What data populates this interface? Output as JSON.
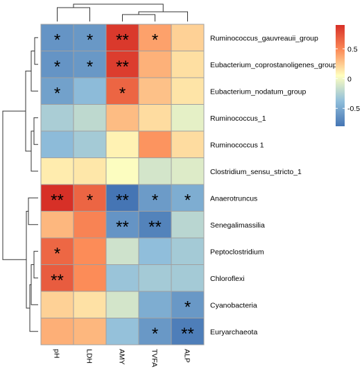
{
  "chart_data": {
    "type": "heatmap",
    "title": "",
    "columns": [
      "pH",
      "LDH",
      "AMY",
      "TVFA",
      "ALP"
    ],
    "rows": [
      "Ruminococcus_gauvreauii_group",
      "Eubacterium_coprostanoligenes_group",
      "Eubacterium_nodatum_group",
      "Ruminococcus_1",
      "Ruminococcus 1",
      "Clostridium_sensu_stricto_1",
      "Anaerotruncus",
      "Senegalimassilia",
      "Peptoclostridium",
      "Chloroflexi",
      "Cyanobacteria",
      "Euryarchaeota"
    ],
    "values": [
      [
        -0.62,
        -0.6,
        0.86,
        0.4,
        0.22
      ],
      [
        -0.62,
        -0.6,
        0.84,
        0.34,
        0.17
      ],
      [
        -0.55,
        -0.4,
        0.66,
        0.28,
        0.15
      ],
      [
        -0.28,
        -0.2,
        0.3,
        0.18,
        -0.05
      ],
      [
        -0.4,
        -0.3,
        0.1,
        0.45,
        0.18
      ],
      [
        0.12,
        0.14,
        0.04,
        -0.12,
        -0.08
      ],
      [
        0.9,
        0.66,
        -0.8,
        -0.58,
        -0.48
      ],
      [
        0.32,
        0.52,
        -0.62,
        -0.72,
        -0.22
      ],
      [
        0.65,
        0.48,
        -0.14,
        -0.38,
        -0.3
      ],
      [
        0.7,
        0.48,
        -0.34,
        -0.3,
        -0.3
      ],
      [
        0.22,
        0.16,
        -0.12,
        -0.48,
        -0.6
      ],
      [
        0.35,
        0.32,
        -0.36,
        -0.6,
        -0.75
      ]
    ],
    "significance": [
      [
        "*",
        "*",
        "**",
        "*",
        ""
      ],
      [
        "*",
        "*",
        "**",
        "",
        ""
      ],
      [
        "*",
        "",
        "*",
        "",
        ""
      ],
      [
        "",
        "",
        "",
        "",
        ""
      ],
      [
        "",
        "",
        "",
        "",
        ""
      ],
      [
        "",
        "",
        "",
        "",
        ""
      ],
      [
        "**",
        "*",
        "**",
        "*",
        "*"
      ],
      [
        "",
        "",
        "**",
        "**",
        ""
      ],
      [
        "*",
        "",
        "",
        "",
        ""
      ],
      [
        "**",
        "",
        "",
        "",
        ""
      ],
      [
        "",
        "",
        "",
        "",
        "*"
      ],
      [
        "",
        "",
        "",
        "*",
        "**"
      ]
    ],
    "legend": {
      "range": [
        -0.8,
        0.9
      ],
      "ticks": [
        {
          "value": 0.5,
          "label": "0.5"
        },
        {
          "value": 0,
          "label": "0"
        },
        {
          "value": -0.5,
          "label": "-0.5"
        }
      ],
      "placement": "top-right",
      "colors": [
        "#4575b4",
        "#91bfdb",
        "#ffffbf",
        "#fc8d59",
        "#d73027"
      ]
    }
  }
}
